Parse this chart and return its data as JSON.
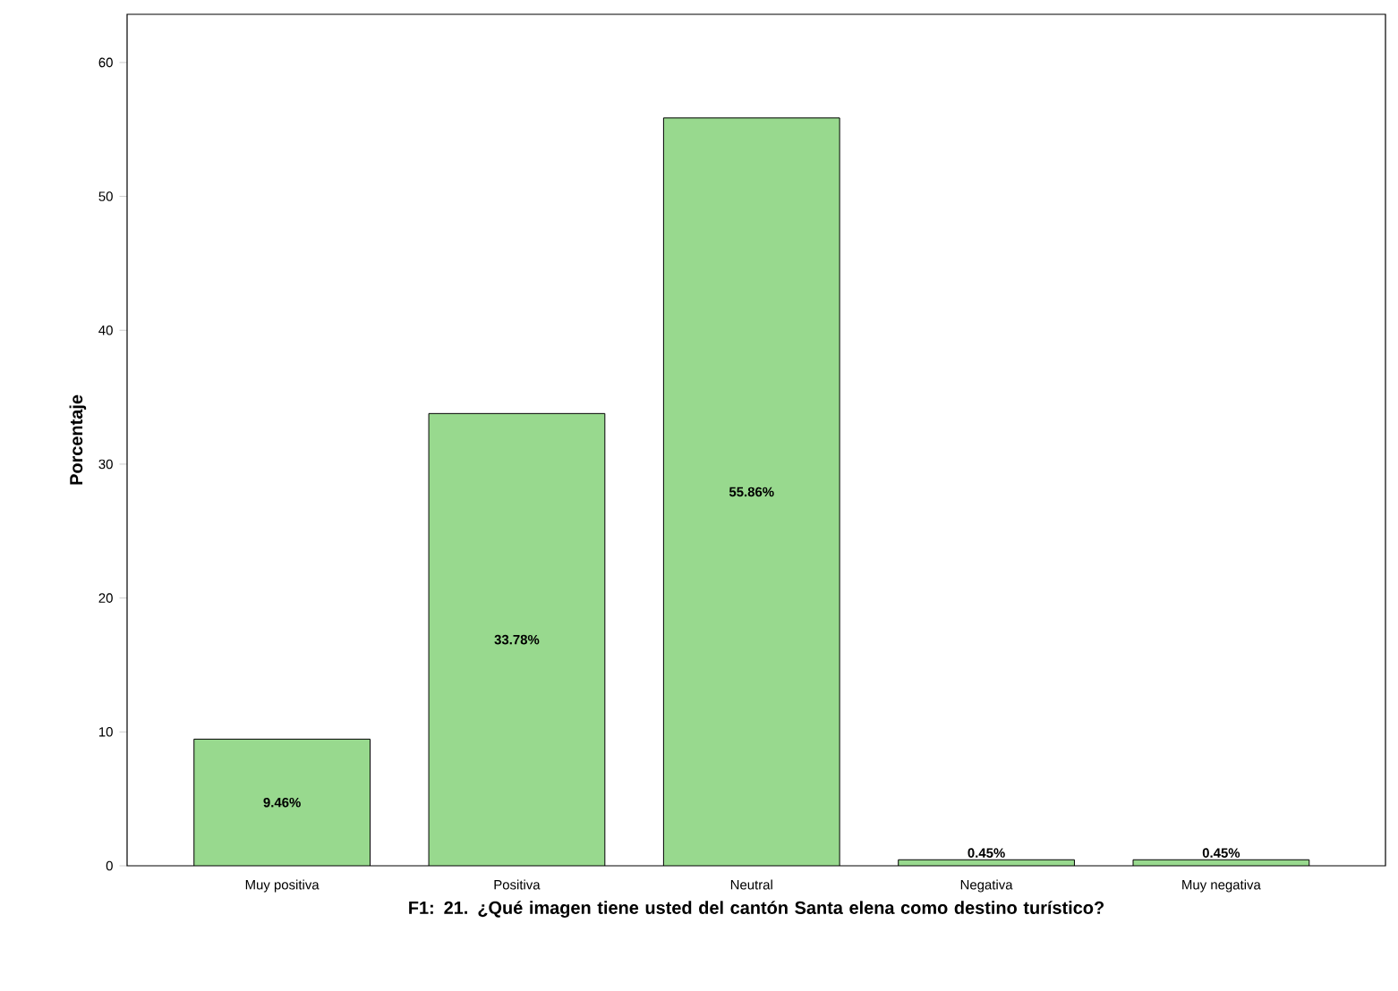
{
  "chart_data": {
    "type": "bar",
    "xlabel": "F1: 21. ¿Qué imagen tiene usted del cantón Santa elena como destino turístico?",
    "ylabel": "Porcentaje",
    "categories": [
      "Muy positiva",
      "Positiva",
      "Neutral",
      "Negativa",
      "Muy negativa"
    ],
    "values": [
      9.46,
      33.78,
      55.86,
      0.45,
      0.45
    ],
    "value_labels": [
      "9.46%",
      "33.78%",
      "55.86%",
      "0.45%",
      "0.45%"
    ],
    "color": "#98d98e",
    "ylim": [
      0,
      63.6
    ],
    "yticks": [
      0,
      10,
      20,
      30,
      40,
      50,
      60
    ],
    "grid": false
  }
}
